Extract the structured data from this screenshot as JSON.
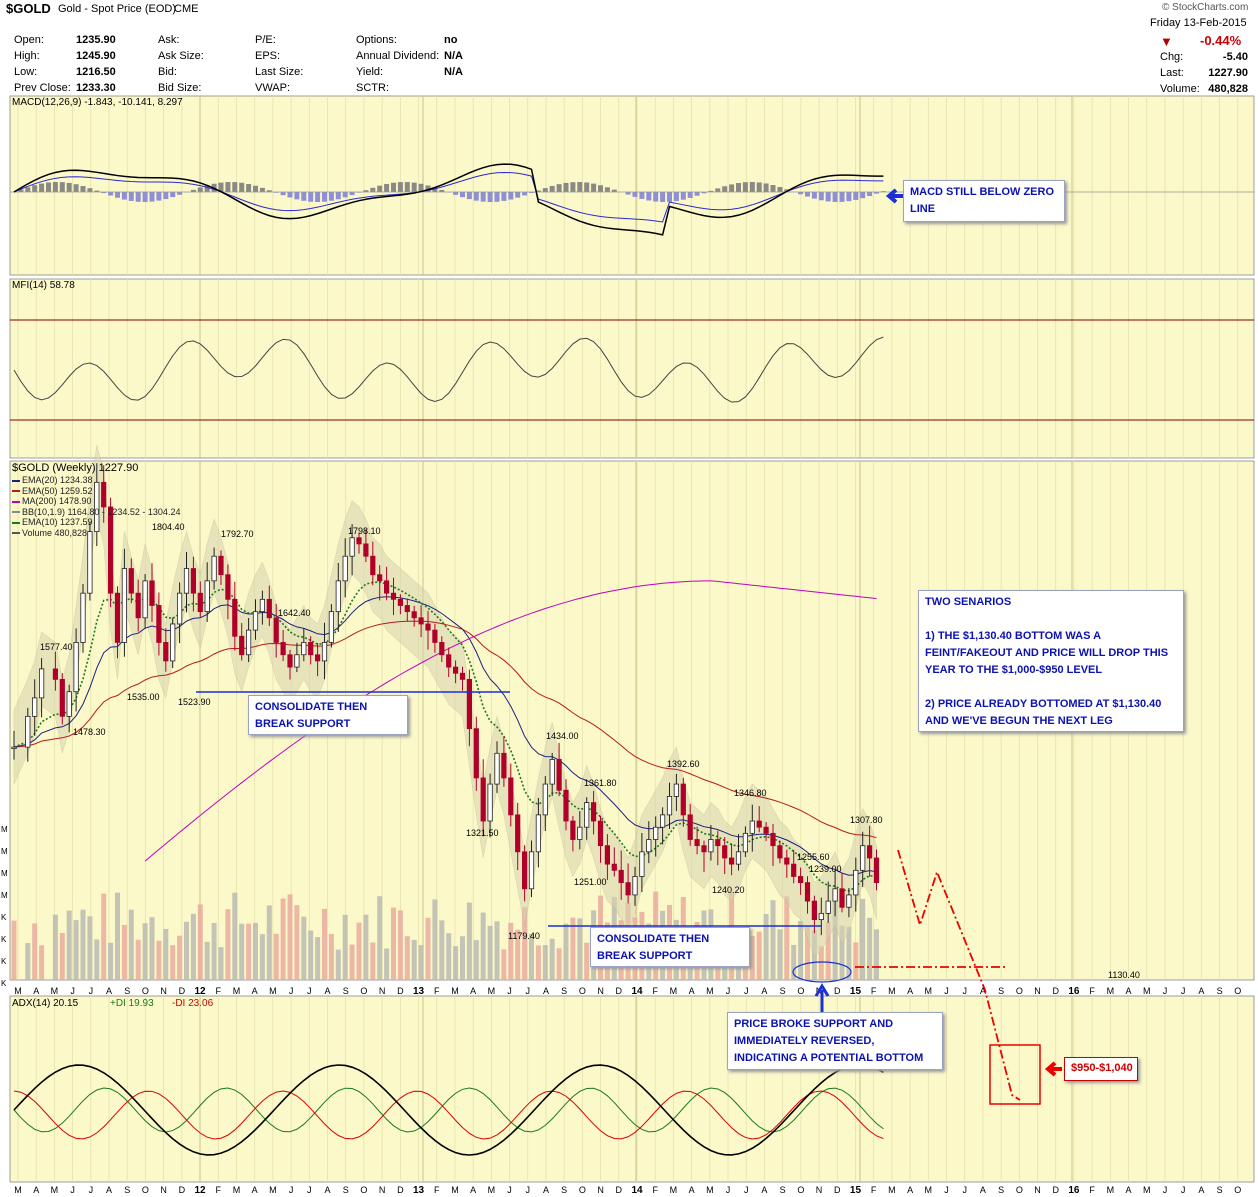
{
  "header": {
    "symbol": "$GOLD",
    "name": "Gold - Spot Price (EOD)",
    "exchange": "CME",
    "watermark": "© StockCharts.com",
    "date": "Friday  13-Feb-2015",
    "change_pct": "-0.44%",
    "left_table": [
      [
        "Open:",
        "1235.90",
        "Ask:",
        "",
        "P/E:",
        "",
        "Options:",
        "no"
      ],
      [
        "High:",
        "1245.90",
        "Ask Size:",
        "",
        "EPS:",
        "",
        "Annual Dividend:",
        "N/A"
      ],
      [
        "Low:",
        "1216.50",
        "Bid:",
        "",
        "Last Size:",
        "",
        "Yield:",
        "N/A"
      ],
      [
        "Prev Close:",
        "1233.30",
        "Bid Size:",
        "",
        "VWAP:",
        "",
        "SCTR:",
        ""
      ]
    ],
    "right_table": [
      [
        "Chg:",
        "-5.40"
      ],
      [
        "Last:",
        "1227.90"
      ],
      [
        "Volume:",
        "480,828"
      ]
    ]
  },
  "panels": {
    "macd_label": "MACD(12,26,9) -1.843, -10.141, 8.297",
    "mfi_label": "MFI(14) 58.78",
    "price_label": "$GOLD (Weekly) 1227.90",
    "legend": [
      {
        "text": "EMA(20) 1234.38",
        "color": "#1a237e"
      },
      {
        "text": "EMA(50) 1259.52",
        "color": "#b71c1c"
      },
      {
        "text": "MA(200) 1478.90",
        "color": "#c000c0"
      },
      {
        "text": "BB(10,1.9) 1164.80 - 1234.52 - 1304.24",
        "color": "#888888"
      },
      {
        "text": "EMA(10) 1237.59",
        "color": "#1b7a1b"
      },
      {
        "text": "Volume 480,828",
        "color": "#555555"
      }
    ],
    "adx_label": "ADX(14) 20.15",
    "adx_plus_di": "+DI 19.93",
    "adx_minus_di": "-DI 23.06"
  },
  "chart_data": {
    "type": "candlestick",
    "period": "weekly",
    "x_axis_months": [
      "M",
      "A",
      "M",
      "J",
      "J",
      "A",
      "S",
      "O",
      "N",
      "D",
      "12",
      "F",
      "M",
      "A",
      "M",
      "J",
      "J",
      "A",
      "S",
      "O",
      "N",
      "D",
      "13",
      "F",
      "M",
      "A",
      "M",
      "J",
      "J",
      "A",
      "S",
      "O",
      "N",
      "D",
      "14",
      "F",
      "M",
      "A",
      "M",
      "J",
      "J",
      "A",
      "S",
      "O",
      "N",
      "D",
      "15",
      "F",
      "M",
      "A",
      "M",
      "J",
      "J",
      "A",
      "S",
      "O",
      "N",
      "D",
      "16",
      "F",
      "M",
      "A",
      "M",
      "J",
      "J",
      "A",
      "S",
      "O"
    ],
    "volume_axis_ticks": [
      "M",
      "M",
      "M",
      "M",
      "K",
      "K",
      "K",
      "K"
    ],
    "price_points": [
      [
        0,
        1450
      ],
      [
        2,
        1500
      ],
      [
        3,
        1530
      ],
      [
        4,
        1577
      ],
      [
        6,
        1560
      ],
      [
        7,
        1500
      ],
      [
        8,
        1540
      ],
      [
        9,
        1620
      ],
      [
        10,
        1700
      ],
      [
        11,
        1800
      ],
      [
        12,
        1880
      ],
      [
        13,
        1840
      ],
      [
        14,
        1700
      ],
      [
        15,
        1620
      ],
      [
        16,
        1740
      ],
      [
        17,
        1700
      ],
      [
        18,
        1660
      ],
      [
        19,
        1720
      ],
      [
        20,
        1680
      ],
      [
        21,
        1620
      ],
      [
        22,
        1590
      ],
      [
        23,
        1650
      ],
      [
        24,
        1700
      ],
      [
        25,
        1740
      ],
      [
        26,
        1700
      ],
      [
        27,
        1670
      ],
      [
        28,
        1720
      ],
      [
        29,
        1760
      ],
      [
        30,
        1730
      ],
      [
        31,
        1690
      ],
      [
        32,
        1630
      ],
      [
        33,
        1600
      ],
      [
        34,
        1640
      ],
      [
        35,
        1670
      ],
      [
        36,
        1690
      ],
      [
        37,
        1660
      ],
      [
        38,
        1620
      ],
      [
        39,
        1600
      ],
      [
        40,
        1580
      ],
      [
        41,
        1600
      ],
      [
        42,
        1620
      ],
      [
        43,
        1600
      ],
      [
        44,
        1590
      ],
      [
        45,
        1620
      ],
      [
        46,
        1670
      ],
      [
        47,
        1720
      ],
      [
        48,
        1760
      ],
      [
        49,
        1790
      ],
      [
        50,
        1780
      ],
      [
        51,
        1760
      ],
      [
        52,
        1730
      ],
      [
        53,
        1720
      ],
      [
        54,
        1700
      ],
      [
        55,
        1690
      ],
      [
        56,
        1680
      ],
      [
        57,
        1670
      ],
      [
        58,
        1660
      ],
      [
        59,
        1650
      ],
      [
        60,
        1640
      ],
      [
        61,
        1620
      ],
      [
        62,
        1600
      ],
      [
        63,
        1580
      ],
      [
        64,
        1570
      ],
      [
        65,
        1560
      ],
      [
        66,
        1480
      ],
      [
        67,
        1400
      ],
      [
        68,
        1330
      ],
      [
        69,
        1390
      ],
      [
        70,
        1440
      ],
      [
        71,
        1400
      ],
      [
        72,
        1340
      ],
      [
        73,
        1280
      ],
      [
        74,
        1220
      ],
      [
        75,
        1280
      ],
      [
        76,
        1340
      ],
      [
        77,
        1390
      ],
      [
        78,
        1430
      ],
      [
        79,
        1380
      ],
      [
        80,
        1330
      ],
      [
        81,
        1300
      ],
      [
        82,
        1320
      ],
      [
        83,
        1360
      ],
      [
        84,
        1330
      ],
      [
        85,
        1290
      ],
      [
        86,
        1260
      ],
      [
        87,
        1250
      ],
      [
        88,
        1230
      ],
      [
        89,
        1210
      ],
      [
        90,
        1240
      ],
      [
        91,
        1280
      ],
      [
        92,
        1300
      ],
      [
        93,
        1320
      ],
      [
        94,
        1340
      ],
      [
        95,
        1370
      ],
      [
        96,
        1390
      ],
      [
        97,
        1340
      ],
      [
        98,
        1300
      ],
      [
        99,
        1290
      ],
      [
        100,
        1280
      ],
      [
        101,
        1300
      ],
      [
        102,
        1290
      ],
      [
        103,
        1270
      ],
      [
        104,
        1260
      ],
      [
        105,
        1280
      ],
      [
        106,
        1310
      ],
      [
        107,
        1330
      ],
      [
        108,
        1320
      ],
      [
        109,
        1310
      ],
      [
        110,
        1290
      ],
      [
        111,
        1270
      ],
      [
        112,
        1260
      ],
      [
        113,
        1240
      ],
      [
        114,
        1230
      ],
      [
        115,
        1200
      ],
      [
        116,
        1170
      ],
      [
        117,
        1180
      ],
      [
        118,
        1200
      ],
      [
        119,
        1220
      ],
      [
        120,
        1190
      ],
      [
        121,
        1210
      ],
      [
        122,
        1250
      ],
      [
        123,
        1290
      ],
      [
        124,
        1270
      ],
      [
        125,
        1230
      ]
    ],
    "price_annotations": [
      "1577.40",
      "1478.30",
      "1535.00",
      "1804.40",
      "1792.70",
      "1523.90",
      "1642.40",
      "1798.10",
      "1321.50",
      "1434.00",
      "1179.40",
      "1361.80",
      "1251.00",
      "1392.60",
      "1240.20",
      "1346.80",
      "1255.60",
      "1239.00",
      "1307.80",
      "1130.40"
    ],
    "support_levels": [
      1523.9,
      1179.4,
      1130.4
    ],
    "projection_points": [
      [
        127,
        1260
      ],
      [
        131,
        1160
      ],
      [
        135,
        1240
      ],
      [
        140,
        1110
      ],
      [
        146,
        960
      ],
      [
        148,
        940
      ]
    ],
    "projection_target": "$950-$1,040"
  },
  "annotations": {
    "macd_note": "MACD STILL BELOW ZERO\nLINE",
    "consolidate_1": "CONSOLIDATE THEN\nBREAK SUPPORT",
    "consolidate_2": "CONSOLIDATE THEN\nBREAK SUPPORT",
    "scenarios": "TWO SENARIOS\n\n1) THE $1,130.40 BOTTOM WAS A\nFEINT/FAKEOUT AND PRICE WILL DROP THIS\nYEAR TO THE $1,000-$950 LEVEL\n\n2) PRICE ALREADY BOTTOMED AT $1,130.40\nAND WE'VE BEGUN THE NEXT LEG",
    "price_broke": "PRICE BROKE SUPPORT AND\nIMMEDIATELY REVERSED,\nINDICATING A POTENTIAL BOTTOM",
    "target": "$950-$1,040"
  }
}
